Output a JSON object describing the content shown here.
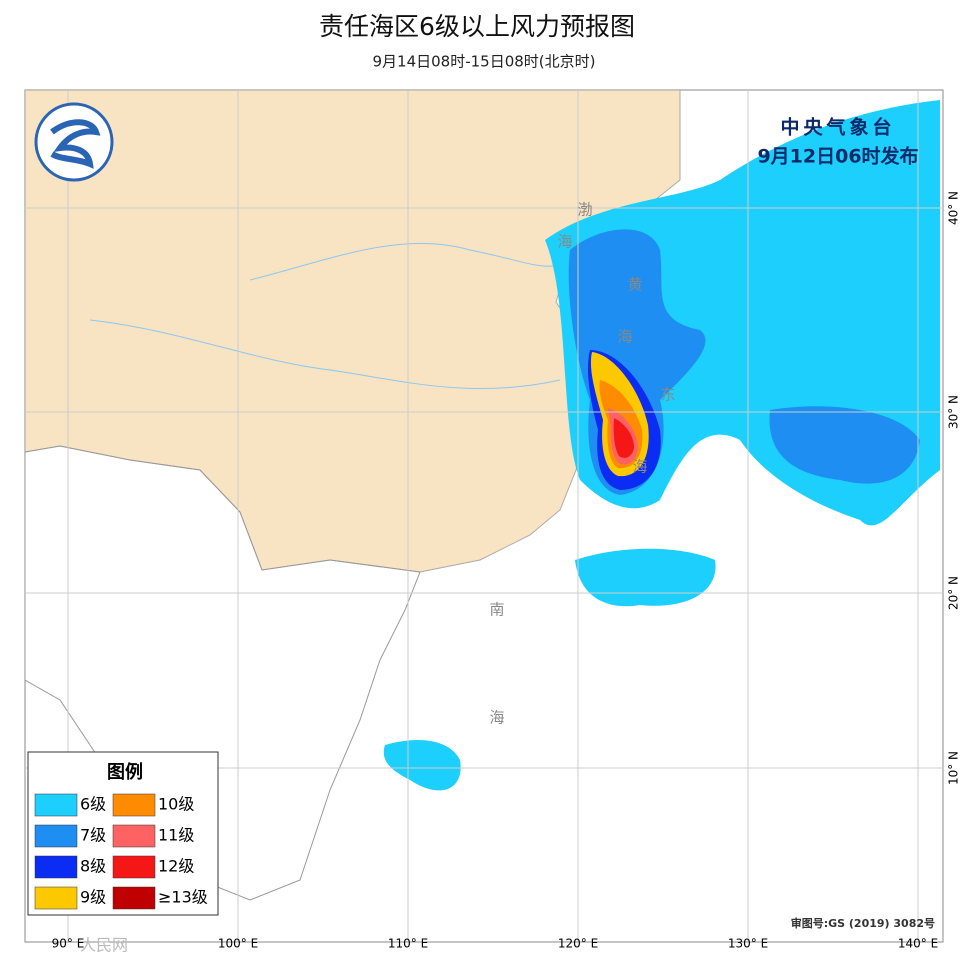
{
  "header": {
    "title": "责任海区6级以上风力预报图",
    "subtitle": "9月14日08时-15日08时(北京时)"
  },
  "issuer": {
    "agency": "中央气象台",
    "time": "9月12日06时发布"
  },
  "legend": {
    "title": "图例",
    "items": [
      {
        "label": "6级",
        "color": "#1dcffc"
      },
      {
        "label": "7级",
        "color": "#1e8ef2"
      },
      {
        "label": "8级",
        "color": "#0b2cf2"
      },
      {
        "label": "9级",
        "color": "#fcc800"
      },
      {
        "label": "10级",
        "color": "#ff8c00"
      },
      {
        "label": "11级",
        "color": "#ff6262"
      },
      {
        "label": "12级",
        "color": "#f51616"
      },
      {
        "label": "≥13级",
        "color": "#c00000"
      }
    ]
  },
  "longitude_labels": [
    "90° E",
    "100° E",
    "110° E",
    "120° E",
    "130° E",
    "140° E"
  ],
  "latitude_labels": [
    "40° N",
    "30° N",
    "20° N",
    "10° N"
  ],
  "sea_labels": [
    "渤",
    "海",
    "黄",
    "海",
    "东",
    "海",
    "南",
    "海"
  ],
  "approval": "审图号:GS (2019) 3082号",
  "watermark": "人民网"
}
